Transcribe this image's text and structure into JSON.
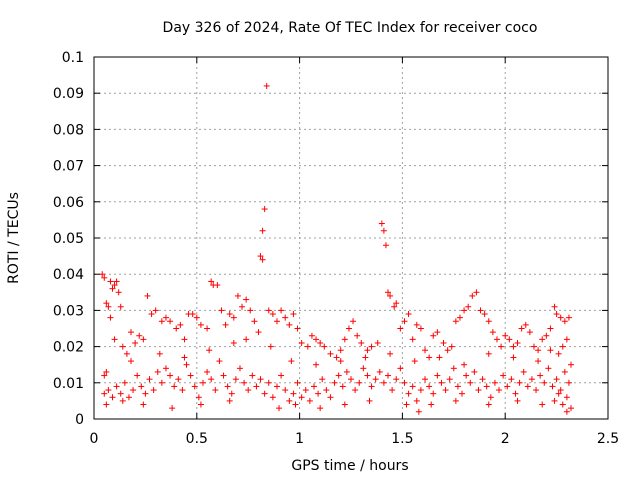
{
  "chart_data": {
    "type": "scatter",
    "title": "Day 326 of 2024, Rate Of TEC Index for receiver coco",
    "xlabel": "GPS time / hours",
    "ylabel": "ROTI / TECUs",
    "xlim": [
      0,
      2.5
    ],
    "ylim": [
      0,
      0.1
    ],
    "xticks": [
      0,
      0.5,
      1,
      1.5,
      2,
      2.5
    ],
    "xtick_labels": [
      "0",
      "0.5",
      "1",
      "1.5",
      "2",
      "2.5"
    ],
    "yticks": [
      0,
      0.01,
      0.02,
      0.03,
      0.04,
      0.05,
      0.06,
      0.07,
      0.08,
      0.09,
      0.1
    ],
    "ytick_labels": [
      "0",
      "0.01",
      "0.02",
      "0.03",
      "0.04",
      "0.05",
      "0.06",
      "0.07",
      "0.08",
      "0.09",
      "0.1"
    ],
    "grid": true,
    "marker": "plus",
    "color": "#ff0000",
    "series": [
      {
        "name": "ROTI",
        "points": [
          [
            0.04,
            0.04
          ],
          [
            0.05,
            0.039
          ],
          [
            0.06,
            0.032
          ],
          [
            0.07,
            0.031
          ],
          [
            0.08,
            0.038
          ],
          [
            0.09,
            0.036
          ],
          [
            0.1,
            0.037
          ],
          [
            0.11,
            0.038
          ],
          [
            0.12,
            0.035
          ],
          [
            0.13,
            0.031
          ],
          [
            0.05,
            0.012
          ],
          [
            0.06,
            0.013
          ],
          [
            0.08,
            0.028
          ],
          [
            0.1,
            0.022
          ],
          [
            0.14,
            0.02
          ],
          [
            0.16,
            0.018
          ],
          [
            0.18,
            0.024
          ],
          [
            0.2,
            0.021
          ],
          [
            0.22,
            0.023
          ],
          [
            0.24,
            0.022
          ],
          [
            0.26,
            0.034
          ],
          [
            0.28,
            0.029
          ],
          [
            0.3,
            0.03
          ],
          [
            0.33,
            0.027
          ],
          [
            0.35,
            0.028
          ],
          [
            0.37,
            0.027
          ],
          [
            0.4,
            0.025
          ],
          [
            0.42,
            0.026
          ],
          [
            0.44,
            0.022
          ],
          [
            0.46,
            0.029
          ],
          [
            0.48,
            0.029
          ],
          [
            0.5,
            0.028
          ],
          [
            0.52,
            0.026
          ],
          [
            0.55,
            0.025
          ],
          [
            0.57,
            0.038
          ],
          [
            0.58,
            0.037
          ],
          [
            0.6,
            0.037
          ],
          [
            0.62,
            0.03
          ],
          [
            0.64,
            0.026
          ],
          [
            0.66,
            0.029
          ],
          [
            0.68,
            0.028
          ],
          [
            0.7,
            0.034
          ],
          [
            0.72,
            0.031
          ],
          [
            0.74,
            0.033
          ],
          [
            0.76,
            0.03
          ],
          [
            0.78,
            0.027
          ],
          [
            0.8,
            0.024
          ],
          [
            0.81,
            0.045
          ],
          [
            0.82,
            0.044
          ],
          [
            0.82,
            0.052
          ],
          [
            0.83,
            0.058
          ],
          [
            0.84,
            0.092
          ],
          [
            0.85,
            0.03
          ],
          [
            0.87,
            0.029
          ],
          [
            0.89,
            0.027
          ],
          [
            0.91,
            0.03
          ],
          [
            0.93,
            0.028
          ],
          [
            0.95,
            0.026
          ],
          [
            0.97,
            0.029
          ],
          [
            0.99,
            0.025
          ],
          [
            1.01,
            0.021
          ],
          [
            1.04,
            0.02
          ],
          [
            1.06,
            0.023
          ],
          [
            1.08,
            0.022
          ],
          [
            1.1,
            0.021
          ],
          [
            1.12,
            0.02
          ],
          [
            1.15,
            0.018
          ],
          [
            1.18,
            0.017
          ],
          [
            1.2,
            0.019
          ],
          [
            1.22,
            0.022
          ],
          [
            1.24,
            0.025
          ],
          [
            1.26,
            0.027
          ],
          [
            1.28,
            0.023
          ],
          [
            1.3,
            0.021
          ],
          [
            1.33,
            0.019
          ],
          [
            1.35,
            0.02
          ],
          [
            1.38,
            0.021
          ],
          [
            1.4,
            0.054
          ],
          [
            1.41,
            0.052
          ],
          [
            1.42,
            0.048
          ],
          [
            1.43,
            0.035
          ],
          [
            1.44,
            0.034
          ],
          [
            1.46,
            0.031
          ],
          [
            1.47,
            0.032
          ],
          [
            1.49,
            0.025
          ],
          [
            1.51,
            0.027
          ],
          [
            1.53,
            0.029
          ],
          [
            1.55,
            0.022
          ],
          [
            1.57,
            0.026
          ],
          [
            1.59,
            0.025
          ],
          [
            1.61,
            0.019
          ],
          [
            1.63,
            0.017
          ],
          [
            1.65,
            0.023
          ],
          [
            1.67,
            0.024
          ],
          [
            1.7,
            0.021
          ],
          [
            1.72,
            0.019
          ],
          [
            1.74,
            0.02
          ],
          [
            1.76,
            0.027
          ],
          [
            1.78,
            0.028
          ],
          [
            1.8,
            0.03
          ],
          [
            1.82,
            0.031
          ],
          [
            1.84,
            0.034
          ],
          [
            1.86,
            0.035
          ],
          [
            1.88,
            0.03
          ],
          [
            1.9,
            0.029
          ],
          [
            1.92,
            0.027
          ],
          [
            1.94,
            0.024
          ],
          [
            1.96,
            0.022
          ],
          [
            1.98,
            0.02
          ],
          [
            2.0,
            0.023
          ],
          [
            2.02,
            0.022
          ],
          [
            2.04,
            0.02
          ],
          [
            2.06,
            0.021
          ],
          [
            2.08,
            0.025
          ],
          [
            2.1,
            0.026
          ],
          [
            2.12,
            0.024
          ],
          [
            2.14,
            0.02
          ],
          [
            2.16,
            0.019
          ],
          [
            2.18,
            0.022
          ],
          [
            2.2,
            0.023
          ],
          [
            2.22,
            0.025
          ],
          [
            2.24,
            0.031
          ],
          [
            2.25,
            0.029
          ],
          [
            2.27,
            0.028
          ],
          [
            2.29,
            0.027
          ],
          [
            2.31,
            0.028
          ],
          [
            2.3,
            0.022
          ],
          [
            2.28,
            0.02
          ],
          [
            2.26,
            0.018
          ],
          [
            0.05,
            0.007
          ],
          [
            0.07,
            0.008
          ],
          [
            0.09,
            0.006
          ],
          [
            0.11,
            0.009
          ],
          [
            0.13,
            0.007
          ],
          [
            0.15,
            0.01
          ],
          [
            0.17,
            0.006
          ],
          [
            0.19,
            0.008
          ],
          [
            0.21,
            0.012
          ],
          [
            0.23,
            0.009
          ],
          [
            0.25,
            0.007
          ],
          [
            0.27,
            0.011
          ],
          [
            0.29,
            0.008
          ],
          [
            0.31,
            0.013
          ],
          [
            0.33,
            0.01
          ],
          [
            0.35,
            0.014
          ],
          [
            0.37,
            0.012
          ],
          [
            0.39,
            0.009
          ],
          [
            0.41,
            0.011
          ],
          [
            0.43,
            0.008
          ],
          [
            0.45,
            0.015
          ],
          [
            0.47,
            0.012
          ],
          [
            0.49,
            0.009
          ],
          [
            0.51,
            0.006
          ],
          [
            0.53,
            0.01
          ],
          [
            0.55,
            0.013
          ],
          [
            0.57,
            0.011
          ],
          [
            0.59,
            0.008
          ],
          [
            0.61,
            0.016
          ],
          [
            0.63,
            0.012
          ],
          [
            0.65,
            0.009
          ],
          [
            0.67,
            0.007
          ],
          [
            0.69,
            0.011
          ],
          [
            0.71,
            0.014
          ],
          [
            0.73,
            0.01
          ],
          [
            0.75,
            0.008
          ],
          [
            0.77,
            0.012
          ],
          [
            0.79,
            0.009
          ],
          [
            0.81,
            0.011
          ],
          [
            0.83,
            0.007
          ],
          [
            0.85,
            0.01
          ],
          [
            0.87,
            0.006
          ],
          [
            0.89,
            0.009
          ],
          [
            0.91,
            0.012
          ],
          [
            0.93,
            0.008
          ],
          [
            0.95,
            0.005
          ],
          [
            0.97,
            0.007
          ],
          [
            0.99,
            0.01
          ],
          [
            1.01,
            0.006
          ],
          [
            1.03,
            0.008
          ],
          [
            1.05,
            0.005
          ],
          [
            1.07,
            0.009
          ],
          [
            1.09,
            0.007
          ],
          [
            1.11,
            0.011
          ],
          [
            1.13,
            0.008
          ],
          [
            1.15,
            0.006
          ],
          [
            1.17,
            0.01
          ],
          [
            1.19,
            0.012
          ],
          [
            1.21,
            0.009
          ],
          [
            1.23,
            0.013
          ],
          [
            1.25,
            0.011
          ],
          [
            1.27,
            0.008
          ],
          [
            1.29,
            0.01
          ],
          [
            1.31,
            0.014
          ],
          [
            1.33,
            0.012
          ],
          [
            1.35,
            0.009
          ],
          [
            1.37,
            0.011
          ],
          [
            1.39,
            0.013
          ],
          [
            1.41,
            0.01
          ],
          [
            1.43,
            0.012
          ],
          [
            1.45,
            0.008
          ],
          [
            1.47,
            0.011
          ],
          [
            1.49,
            0.014
          ],
          [
            1.51,
            0.01
          ],
          [
            1.53,
            0.007
          ],
          [
            1.55,
            0.009
          ],
          [
            1.57,
            0.005
          ],
          [
            1.59,
            0.008
          ],
          [
            1.61,
            0.011
          ],
          [
            1.63,
            0.009
          ],
          [
            1.65,
            0.007
          ],
          [
            1.67,
            0.012
          ],
          [
            1.69,
            0.01
          ],
          [
            1.71,
            0.008
          ],
          [
            1.73,
            0.011
          ],
          [
            1.75,
            0.014
          ],
          [
            1.77,
            0.009
          ],
          [
            1.79,
            0.007
          ],
          [
            1.81,
            0.012
          ],
          [
            1.83,
            0.01
          ],
          [
            1.85,
            0.013
          ],
          [
            1.87,
            0.008
          ],
          [
            1.89,
            0.011
          ],
          [
            1.91,
            0.009
          ],
          [
            1.93,
            0.006
          ],
          [
            1.95,
            0.01
          ],
          [
            1.97,
            0.008
          ],
          [
            1.99,
            0.012
          ],
          [
            2.01,
            0.009
          ],
          [
            2.03,
            0.011
          ],
          [
            2.05,
            0.007
          ],
          [
            2.07,
            0.01
          ],
          [
            2.09,
            0.013
          ],
          [
            2.11,
            0.009
          ],
          [
            2.13,
            0.011
          ],
          [
            2.15,
            0.008
          ],
          [
            2.17,
            0.012
          ],
          [
            2.19,
            0.01
          ],
          [
            2.21,
            0.014
          ],
          [
            2.23,
            0.009
          ],
          [
            2.25,
            0.011
          ],
          [
            2.27,
            0.008
          ],
          [
            2.29,
            0.013
          ],
          [
            2.31,
            0.01
          ],
          [
            2.3,
            0.006
          ],
          [
            2.28,
            0.004
          ],
          [
            2.26,
            0.007
          ],
          [
            2.24,
            0.005
          ],
          [
            0.06,
            0.004
          ],
          [
            0.14,
            0.005
          ],
          [
            0.24,
            0.004
          ],
          [
            0.38,
            0.003
          ],
          [
            0.52,
            0.004
          ],
          [
            0.66,
            0.005
          ],
          [
            0.9,
            0.003
          ],
          [
            0.98,
            0.004
          ],
          [
            1.1,
            0.003
          ],
          [
            1.22,
            0.004
          ],
          [
            1.34,
            0.005
          ],
          [
            1.52,
            0.004
          ],
          [
            1.58,
            0.002
          ],
          [
            1.64,
            0.004
          ],
          [
            1.76,
            0.005
          ],
          [
            1.92,
            0.004
          ],
          [
            2.06,
            0.005
          ],
          [
            2.18,
            0.004
          ],
          [
            2.32,
            0.003
          ],
          [
            2.3,
            0.002
          ],
          [
            0.18,
            0.016
          ],
          [
            0.32,
            0.018
          ],
          [
            0.44,
            0.017
          ],
          [
            0.56,
            0.019
          ],
          [
            0.68,
            0.021
          ],
          [
            0.74,
            0.022
          ],
          [
            0.86,
            0.02
          ],
          [
            0.96,
            0.016
          ],
          [
            1.08,
            0.015
          ],
          [
            1.2,
            0.016
          ],
          [
            1.32,
            0.017
          ],
          [
            1.44,
            0.018
          ],
          [
            1.56,
            0.016
          ],
          [
            1.68,
            0.017
          ],
          [
            1.8,
            0.015
          ],
          [
            1.92,
            0.018
          ],
          [
            2.04,
            0.017
          ],
          [
            2.16,
            0.016
          ],
          [
            2.22,
            0.019
          ],
          [
            2.32,
            0.015
          ]
        ]
      }
    ]
  }
}
